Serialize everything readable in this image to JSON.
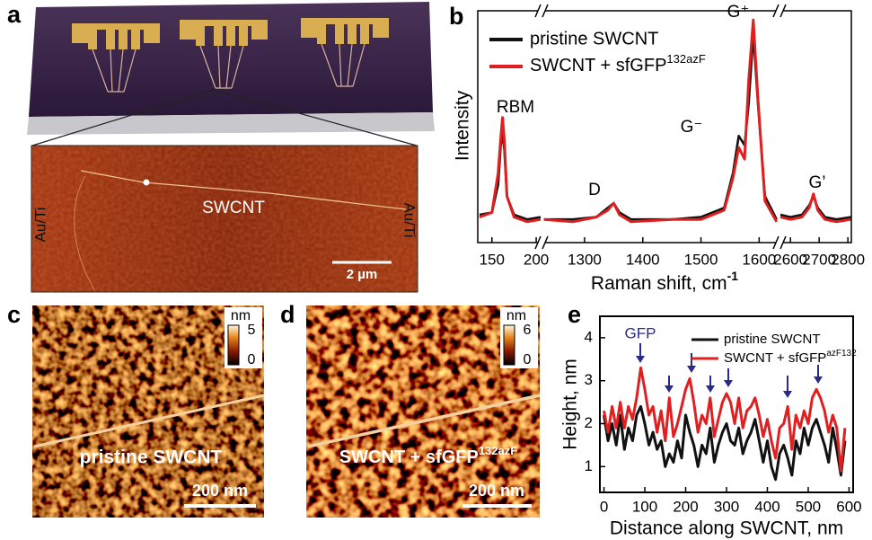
{
  "panel_labels": [
    "a",
    "b",
    "c",
    "d",
    "e"
  ],
  "panel_a": {
    "electrode_left": "Au/Ti",
    "electrode_right": "Au/Ti",
    "tube": "SWCNT",
    "scale_bar": "2 µm"
  },
  "panel_c": {
    "colorbar_unit": "nm",
    "colorbar_max": 5,
    "colorbar_min": 0,
    "caption": "pristine SWCNT",
    "scale_bar": "200 nm"
  },
  "panel_d": {
    "colorbar_unit": "nm",
    "colorbar_max": 6,
    "colorbar_min": 0,
    "caption": "SWCNT + sfGFP",
    "caption_sup": "132azF",
    "scale_bar": "200 nm"
  },
  "chart_data": [
    {
      "type": "line",
      "xlabel": "Raman shift, cm",
      "xlabel_sup": "-1",
      "ylabel": "Intensity",
      "x_segments": [
        {
          "xlim": [
            134,
            206
          ],
          "xticks": [
            150,
            200
          ]
        },
        {
          "xlim": [
            1226,
            1635
          ],
          "xticks": [
            1300,
            1400,
            1500,
            1600
          ]
        },
        {
          "xlim": [
            2562,
            2812
          ],
          "xticks": [
            2600,
            2700,
            2800
          ]
        }
      ],
      "ylim": [
        0,
        1
      ],
      "x": [
        136,
        150,
        157,
        160,
        162,
        164,
        167,
        175,
        190,
        205,
        1230,
        1280,
        1320,
        1340,
        1350,
        1360,
        1380,
        1450,
        1500,
        1540,
        1555,
        1565,
        1575,
        1582,
        1590,
        1598,
        1610,
        1630,
        2565,
        2600,
        2640,
        2665,
        2680,
        2695,
        2720,
        2760,
        2810
      ],
      "series": [
        {
          "name": "pristine SWCNT",
          "color": "#111111",
          "values": [
            0.12,
            0.13,
            0.25,
            0.42,
            0.47,
            0.4,
            0.2,
            0.12,
            0.1,
            0.11,
            0.1,
            0.1,
            0.11,
            0.15,
            0.17,
            0.13,
            0.1,
            0.1,
            0.11,
            0.15,
            0.3,
            0.46,
            0.42,
            0.6,
            0.9,
            0.6,
            0.2,
            0.1,
            0.12,
            0.11,
            0.12,
            0.16,
            0.2,
            0.15,
            0.11,
            0.1,
            0.11
          ]
        },
        {
          "name": "SWCNT + sfGFP",
          "name_sup": "132azF",
          "color": "#e02020",
          "values": [
            0.11,
            0.13,
            0.3,
            0.45,
            0.54,
            0.44,
            0.2,
            0.11,
            0.09,
            0.1,
            0.1,
            0.09,
            0.11,
            0.14,
            0.17,
            0.12,
            0.09,
            0.1,
            0.1,
            0.14,
            0.28,
            0.41,
            0.36,
            0.7,
            0.96,
            0.62,
            0.18,
            0.09,
            0.11,
            0.1,
            0.11,
            0.15,
            0.21,
            0.14,
            0.1,
            0.09,
            0.1
          ]
        }
      ],
      "annotations": [
        "RBM",
        "D",
        "G⁻",
        "G⁺",
        "G’"
      ]
    },
    {
      "type": "line",
      "xlabel": "Distance along SWCNT, nm",
      "ylabel": "Height, nm",
      "xlim": [
        -10,
        610
      ],
      "xticks": [
        0,
        100,
        200,
        300,
        400,
        500,
        600
      ],
      "ylim": [
        0.4,
        4.5
      ],
      "yticks": [
        1,
        2,
        3,
        4
      ],
      "x": [
        0,
        10,
        20,
        30,
        40,
        50,
        60,
        70,
        80,
        90,
        100,
        110,
        120,
        130,
        140,
        150,
        160,
        170,
        180,
        190,
        200,
        210,
        220,
        230,
        240,
        250,
        260,
        270,
        280,
        290,
        300,
        310,
        320,
        330,
        340,
        350,
        360,
        370,
        380,
        390,
        400,
        410,
        420,
        430,
        440,
        450,
        460,
        470,
        480,
        490,
        500,
        510,
        520,
        530,
        540,
        550,
        560,
        570,
        580,
        590
      ],
      "series": [
        {
          "name": "pristine SWCNT",
          "color": "#111111",
          "values": [
            2.2,
            1.6,
            2.0,
            1.5,
            2.2,
            1.4,
            1.9,
            1.6,
            2.2,
            2.4,
            2.0,
            1.5,
            1.8,
            1.4,
            1.6,
            1.0,
            1.3,
            1.1,
            1.6,
            1.2,
            2.2,
            1.8,
            1.5,
            1.0,
            1.5,
            1.3,
            1.9,
            1.1,
            1.5,
            1.8,
            2.0,
            1.6,
            1.5,
            1.9,
            1.3,
            1.6,
            1.8,
            2.1,
            1.6,
            1.1,
            1.6,
            1.0,
            0.7,
            1.3,
            1.5,
            1.2,
            0.8,
            1.6,
            1.3,
            1.9,
            1.5,
            1.9,
            2.1,
            1.8,
            1.5,
            1.1,
            1.9,
            1.4,
            0.8,
            1.6
          ]
        },
        {
          "name": "SWCNT + sfGFP",
          "name_sup": "azF132",
          "color": "#e02020",
          "values": [
            2.3,
            1.8,
            2.4,
            1.9,
            2.5,
            1.9,
            2.4,
            2.1,
            2.6,
            3.3,
            2.8,
            2.2,
            2.4,
            1.8,
            2.3,
            1.6,
            2.6,
            1.7,
            2.0,
            2.4,
            2.8,
            3.05,
            2.5,
            1.8,
            2.2,
            2.0,
            2.6,
            1.7,
            2.1,
            2.5,
            2.7,
            2.5,
            2.0,
            2.6,
            1.9,
            2.3,
            2.4,
            2.6,
            2.2,
            1.7,
            2.1,
            1.6,
            1.2,
            1.9,
            2.0,
            2.4,
            1.4,
            2.2,
            1.9,
            2.3,
            2.0,
            2.6,
            2.8,
            2.6,
            2.3,
            1.8,
            2.2,
            1.9,
            0.9,
            1.9
          ]
        }
      ],
      "annotation": "GFP"
    }
  ]
}
